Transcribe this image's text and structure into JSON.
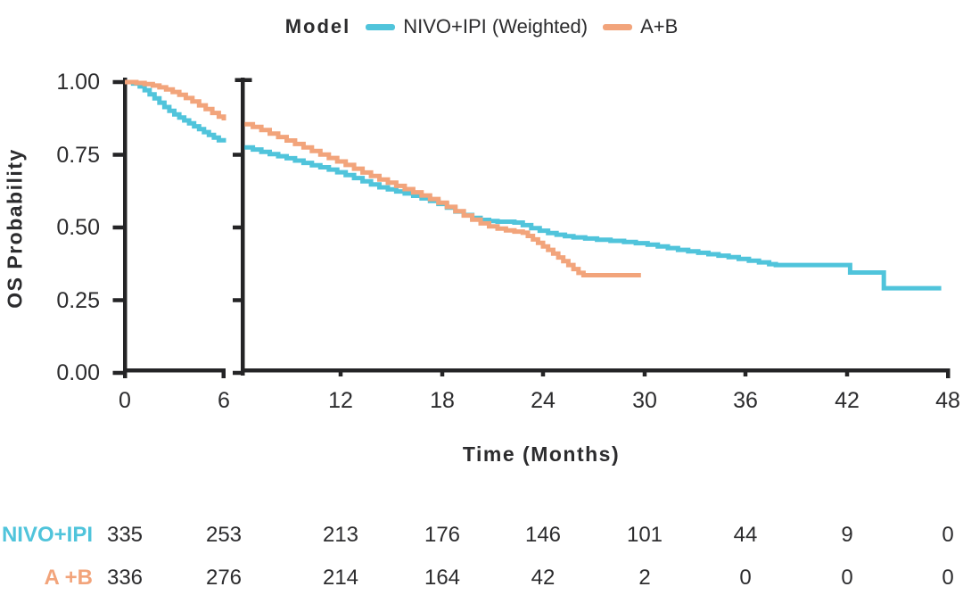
{
  "legend": {
    "title": "Model",
    "series": [
      {
        "label": "NIVO+IPI (Weighted)",
        "color": "#50C4DB"
      },
      {
        "label": "A+B",
        "color": "#F2A47B"
      }
    ]
  },
  "chart_data": {
    "type": "line",
    "subtype": "kaplan-meier-step-curves",
    "title": "",
    "xlabel": "Time (Months)",
    "ylabel": "OS Probability",
    "legend_position": "top",
    "grid": false,
    "ylim": [
      0.0,
      1.0
    ],
    "xlim": [
      0,
      48
    ],
    "x_axis_break_between": [
      6,
      6.3
    ],
    "x_ticks": [
      0,
      6,
      12,
      18,
      24,
      30,
      36,
      42,
      48
    ],
    "y_tick_labels": [
      "1.00",
      "0.75",
      "0.50",
      "0.25",
      "0.00"
    ],
    "y_tick_values": [
      1.0,
      0.75,
      0.5,
      0.25,
      0.0
    ],
    "series": [
      {
        "name": "NIVO+IPI (Weighted)",
        "color": "#50C4DB",
        "points_panel1": [
          [
            0,
            1.0
          ],
          [
            0.5,
            0.995
          ],
          [
            0.9,
            0.985
          ],
          [
            1.2,
            0.972
          ],
          [
            1.5,
            0.958
          ],
          [
            1.8,
            0.944
          ],
          [
            2.1,
            0.929
          ],
          [
            2.4,
            0.914
          ],
          [
            2.7,
            0.901
          ],
          [
            3.0,
            0.889
          ],
          [
            3.3,
            0.878
          ],
          [
            3.6,
            0.868
          ],
          [
            3.9,
            0.858
          ],
          [
            4.2,
            0.848
          ],
          [
            4.5,
            0.838
          ],
          [
            4.8,
            0.828
          ],
          [
            5.1,
            0.818
          ],
          [
            5.4,
            0.809
          ],
          [
            5.7,
            0.8
          ],
          [
            6.0,
            0.792
          ]
        ],
        "points_panel2": [
          [
            6.3,
            0.775
          ],
          [
            6.8,
            0.768
          ],
          [
            7.3,
            0.76
          ],
          [
            7.8,
            0.752
          ],
          [
            8.3,
            0.745
          ],
          [
            8.8,
            0.738
          ],
          [
            9.3,
            0.73
          ],
          [
            9.8,
            0.722
          ],
          [
            10.3,
            0.714
          ],
          [
            10.8,
            0.707
          ],
          [
            11.3,
            0.699
          ],
          [
            11.8,
            0.69
          ],
          [
            12.3,
            0.68
          ],
          [
            12.8,
            0.67
          ],
          [
            13.3,
            0.659
          ],
          [
            13.8,
            0.648
          ],
          [
            14.3,
            0.638
          ],
          [
            14.8,
            0.631
          ],
          [
            15.3,
            0.624
          ],
          [
            15.8,
            0.617
          ],
          [
            16.3,
            0.609
          ],
          [
            16.8,
            0.6
          ],
          [
            17.3,
            0.591
          ],
          [
            17.8,
            0.581
          ],
          [
            18.3,
            0.568
          ],
          [
            18.8,
            0.555
          ],
          [
            19.3,
            0.543
          ],
          [
            19.8,
            0.533
          ],
          [
            20.3,
            0.526
          ],
          [
            20.8,
            0.522
          ],
          [
            21.3,
            0.52
          ],
          [
            22.3,
            0.517
          ],
          [
            22.8,
            0.508
          ],
          [
            23.3,
            0.498
          ],
          [
            23.8,
            0.489
          ],
          [
            24.3,
            0.481
          ],
          [
            24.8,
            0.475
          ],
          [
            25.3,
            0.47
          ],
          [
            25.8,
            0.466
          ],
          [
            26.5,
            0.462
          ],
          [
            27.2,
            0.458
          ],
          [
            28.0,
            0.454
          ],
          [
            28.8,
            0.45
          ],
          [
            29.5,
            0.446
          ],
          [
            30.2,
            0.441
          ],
          [
            30.8,
            0.435
          ],
          [
            31.4,
            0.429
          ],
          [
            32.0,
            0.423
          ],
          [
            32.6,
            0.418
          ],
          [
            33.2,
            0.413
          ],
          [
            33.8,
            0.408
          ],
          [
            34.4,
            0.403
          ],
          [
            35.0,
            0.398
          ],
          [
            35.6,
            0.392
          ],
          [
            36.2,
            0.386
          ],
          [
            36.8,
            0.38
          ],
          [
            37.4,
            0.374
          ],
          [
            37.8,
            0.371
          ],
          [
            42.2,
            0.345
          ],
          [
            44.2,
            0.291
          ],
          [
            47.6,
            0.291
          ]
        ]
      },
      {
        "name": "A+B",
        "color": "#F2A47B",
        "points_panel1": [
          [
            0,
            1.0
          ],
          [
            0.7,
            0.997
          ],
          [
            1.2,
            0.993
          ],
          [
            1.7,
            0.988
          ],
          [
            2.1,
            0.982
          ],
          [
            2.5,
            0.975
          ],
          [
            2.9,
            0.966
          ],
          [
            3.3,
            0.956
          ],
          [
            3.7,
            0.945
          ],
          [
            4.1,
            0.933
          ],
          [
            4.5,
            0.92
          ],
          [
            4.9,
            0.907
          ],
          [
            5.3,
            0.894
          ],
          [
            5.7,
            0.881
          ],
          [
            6.0,
            0.868
          ]
        ],
        "points_panel2": [
          [
            6.3,
            0.855
          ],
          [
            6.8,
            0.846
          ],
          [
            7.3,
            0.835
          ],
          [
            7.8,
            0.823
          ],
          [
            8.3,
            0.811
          ],
          [
            8.8,
            0.799
          ],
          [
            9.3,
            0.787
          ],
          [
            9.8,
            0.775
          ],
          [
            10.3,
            0.763
          ],
          [
            10.8,
            0.751
          ],
          [
            11.3,
            0.739
          ],
          [
            11.8,
            0.727
          ],
          [
            12.3,
            0.715
          ],
          [
            12.8,
            0.702
          ],
          [
            13.3,
            0.689
          ],
          [
            13.8,
            0.677
          ],
          [
            14.3,
            0.665
          ],
          [
            14.8,
            0.654
          ],
          [
            15.3,
            0.643
          ],
          [
            15.8,
            0.632
          ],
          [
            16.3,
            0.621
          ],
          [
            16.8,
            0.61
          ],
          [
            17.3,
            0.598
          ],
          [
            17.8,
            0.585
          ],
          [
            18.3,
            0.571
          ],
          [
            18.8,
            0.556
          ],
          [
            19.3,
            0.541
          ],
          [
            19.8,
            0.527
          ],
          [
            20.3,
            0.514
          ],
          [
            20.8,
            0.504
          ],
          [
            21.3,
            0.496
          ],
          [
            21.8,
            0.49
          ],
          [
            22.3,
            0.486
          ],
          [
            22.8,
            0.482
          ],
          [
            23.1,
            0.471
          ],
          [
            23.4,
            0.459
          ],
          [
            23.7,
            0.447
          ],
          [
            24.0,
            0.435
          ],
          [
            24.3,
            0.423
          ],
          [
            24.6,
            0.41
          ],
          [
            24.9,
            0.397
          ],
          [
            25.2,
            0.384
          ],
          [
            25.5,
            0.371
          ],
          [
            25.8,
            0.357
          ],
          [
            26.1,
            0.344
          ],
          [
            26.4,
            0.336
          ],
          [
            29.8,
            0.336
          ]
        ]
      }
    ],
    "risk_table": {
      "time_points": [
        0,
        6,
        12,
        18,
        24,
        30,
        36,
        42,
        48
      ],
      "rows": [
        {
          "label": "NIVO+IPI",
          "color": "#50C4DB",
          "values": [
            "335",
            "253",
            "213",
            "176",
            "146",
            "101",
            "44",
            "9",
            "0"
          ]
        },
        {
          "label": "A +B",
          "color": "#F2A47B",
          "values": [
            "336",
            "276",
            "214",
            "164",
            "42",
            "2",
            "0",
            "0",
            "0"
          ]
        }
      ]
    }
  }
}
